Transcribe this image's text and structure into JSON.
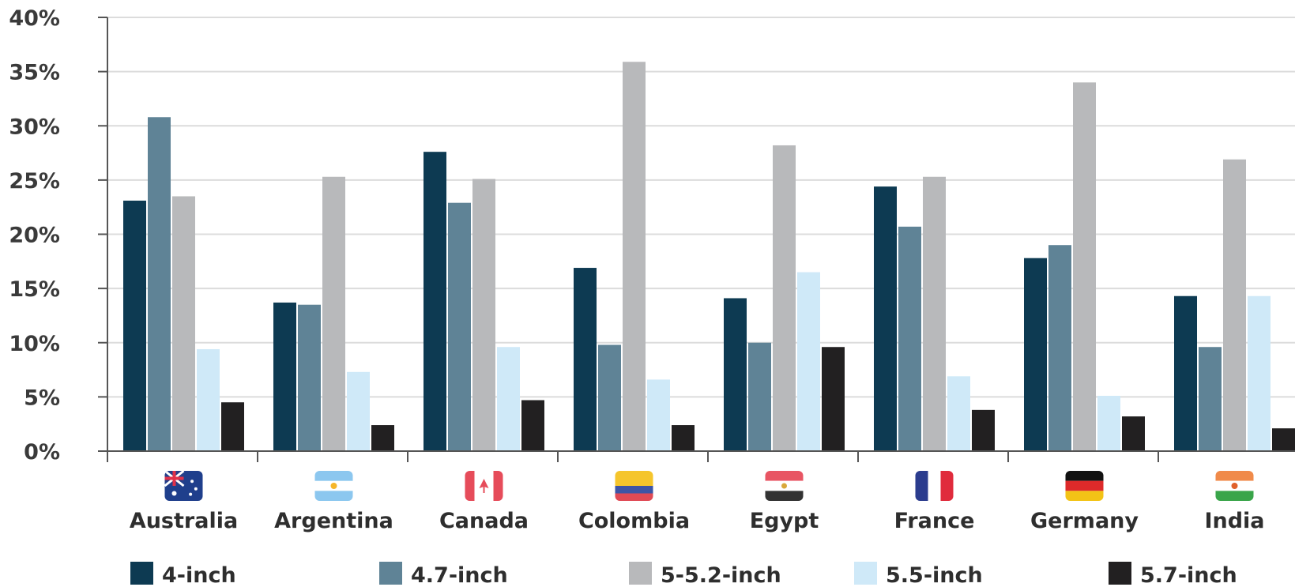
{
  "chart_data": {
    "type": "bar",
    "categories": [
      "Australia",
      "Argentina",
      "Canada",
      "Colombia",
      "Egypt",
      "France",
      "Germany",
      "India"
    ],
    "series": [
      {
        "name": "4-inch",
        "color": "#0d3a52",
        "values": [
          23.1,
          13.7,
          27.6,
          16.9,
          14.1,
          24.4,
          17.8,
          14.3
        ]
      },
      {
        "name": "4.7-inch",
        "color": "#5f8396",
        "values": [
          30.8,
          13.5,
          22.9,
          9.8,
          10.0,
          20.7,
          19.0,
          9.6
        ]
      },
      {
        "name": "5-5.2-inch",
        "color": "#b8b9bb",
        "values": [
          23.5,
          25.3,
          25.1,
          35.9,
          28.2,
          25.3,
          34.0,
          26.9
        ]
      },
      {
        "name": "5.5-inch",
        "color": "#cfe9f8",
        "values": [
          9.4,
          7.3,
          9.6,
          6.6,
          16.5,
          6.9,
          5.1,
          14.3
        ]
      },
      {
        "name": "5.7-inch",
        "color": "#222021",
        "values": [
          4.5,
          2.4,
          4.7,
          2.4,
          9.6,
          3.8,
          3.2,
          2.1
        ]
      }
    ],
    "y_ticks": [
      "0%",
      "5%",
      "10%",
      "15%",
      "20%",
      "25%",
      "30%",
      "35%",
      "40%"
    ],
    "ylim": [
      0,
      40
    ],
    "grid": true,
    "legend_position": "bottom",
    "flag_icons": [
      "australia-flag-icon",
      "argentina-flag-icon",
      "canada-flag-icon",
      "colombia-flag-icon",
      "egypt-flag-icon",
      "france-flag-icon",
      "germany-flag-icon",
      "india-flag-icon"
    ]
  }
}
